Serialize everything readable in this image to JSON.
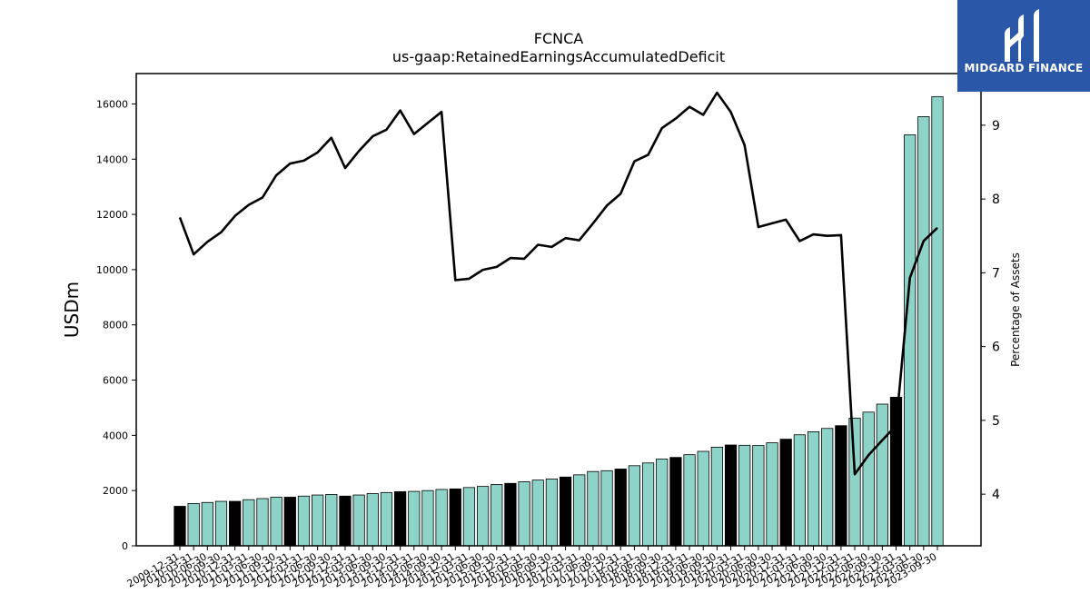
{
  "chart_data": {
    "type": "bar",
    "title": "FCNCA",
    "subtitle": "us-gaap:RetainedEarningsAccumulatedDeficit",
    "ylabel": "USDm",
    "y2label": "Percentage of Assets",
    "ylim": [
      0,
      17100
    ],
    "y2lim": [
      3.3,
      9.7
    ],
    "yticks": [
      0,
      2000,
      4000,
      6000,
      8000,
      10000,
      12000,
      14000,
      16000
    ],
    "y2ticks": [
      4,
      5,
      6,
      7,
      8,
      9
    ],
    "categories": [
      "2009-12-31",
      "2010-03-31",
      "2010-06-30",
      "2010-09-30",
      "2010-12-31",
      "2011-03-31",
      "2011-06-30",
      "2011-09-30",
      "2011-12-31",
      "2012-03-31",
      "2012-06-30",
      "2012-09-30",
      "2012-12-31",
      "2013-03-31",
      "2013-06-30",
      "2013-09-30",
      "2013-12-31",
      "2014-03-31",
      "2014-06-30",
      "2014-09-30",
      "2014-12-31",
      "2015-03-31",
      "2015-06-30",
      "2015-09-30",
      "2015-12-31",
      "2016-03-31",
      "2016-06-30",
      "2016-09-30",
      "2016-12-31",
      "2017-03-31",
      "2017-06-30",
      "2017-09-30",
      "2017-12-31",
      "2018-03-31",
      "2018-06-30",
      "2018-09-30",
      "2018-12-31",
      "2019-03-31",
      "2019-06-30",
      "2019-09-30",
      "2019-12-31",
      "2020-03-31",
      "2020-06-30",
      "2020-09-30",
      "2020-12-31",
      "2021-03-31",
      "2021-06-30",
      "2021-09-30",
      "2021-12-31",
      "2022-03-31",
      "2022-06-30",
      "2022-09-30",
      "2022-12-31",
      "2023-03-31",
      "2023-06-30",
      "2023-09-30"
    ],
    "series": [
      {
        "kind": "bar",
        "values": [
          1430,
          1530,
          1570,
          1610,
          1610,
          1670,
          1710,
          1760,
          1760,
          1800,
          1840,
          1860,
          1800,
          1840,
          1890,
          1930,
          1960,
          1970,
          2000,
          2040,
          2060,
          2110,
          2150,
          2220,
          2260,
          2320,
          2380,
          2420,
          2490,
          2570,
          2690,
          2720,
          2780,
          2900,
          3000,
          3140,
          3200,
          3300,
          3420,
          3570,
          3650,
          3640,
          3630,
          3730,
          3860,
          4020,
          4130,
          4250,
          4350,
          4620,
          4840,
          5130,
          5380,
          14880,
          15540,
          16260
        ]
      },
      {
        "kind": "line",
        "axis": "secondary",
        "values": [
          7.75,
          7.25,
          7.42,
          7.55,
          7.77,
          7.92,
          8.02,
          8.32,
          8.48,
          8.52,
          8.63,
          8.83,
          8.42,
          8.65,
          8.85,
          8.94,
          9.2,
          8.88,
          9.03,
          9.18,
          6.9,
          6.92,
          7.04,
          7.08,
          7.2,
          7.19,
          7.38,
          7.35,
          7.47,
          7.44,
          7.67,
          7.91,
          8.07,
          8.51,
          8.6,
          8.96,
          9.09,
          9.25,
          9.14,
          9.44,
          9.18,
          8.73,
          7.62,
          7.67,
          7.72,
          7.43,
          7.52,
          7.5,
          7.51,
          4.27,
          4.53,
          4.73,
          4.93,
          6.93,
          7.43,
          7.61
        ]
      }
    ],
    "highlight_indices": [
      0,
      4,
      8,
      12,
      16,
      20,
      24,
      28,
      32,
      36,
      40,
      44,
      48,
      52
    ],
    "colors": {
      "bar": "#8ed3c7",
      "bar_highlight": "#000000",
      "line": "#000000"
    },
    "grid": false
  },
  "logo": {
    "text": "MIDGARD FINANCE"
  }
}
